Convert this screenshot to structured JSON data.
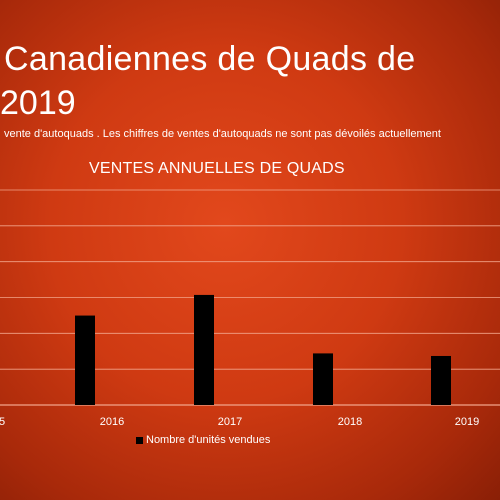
{
  "header": {
    "title_line1": "Canadiennes de Quads de",
    "title_line2": "2019",
    "subtitle": "vente d'autoquads . Les chiffres de ventes d'autoquads ne sont pas dévoilés actuellement"
  },
  "chart_data": {
    "type": "bar",
    "title": "VENTES ANNUELLES DE QUADS",
    "xlabel": "",
    "ylabel": "",
    "tick_labels": [
      "5",
      "2016",
      "2017",
      "2018",
      "2019"
    ],
    "categories": [
      "2016",
      "2017",
      "2018",
      "2019"
    ],
    "series": [
      {
        "name": "Nombre d'unités vendues",
        "values": [
          104,
          128,
          60,
          57
        ]
      }
    ],
    "ylim": [
      0,
      250
    ],
    "grid": true,
    "legend_position": "bottom",
    "colors": {
      "bar": "#000000",
      "grid": "#f2a48a",
      "text": "#ffffff"
    }
  }
}
